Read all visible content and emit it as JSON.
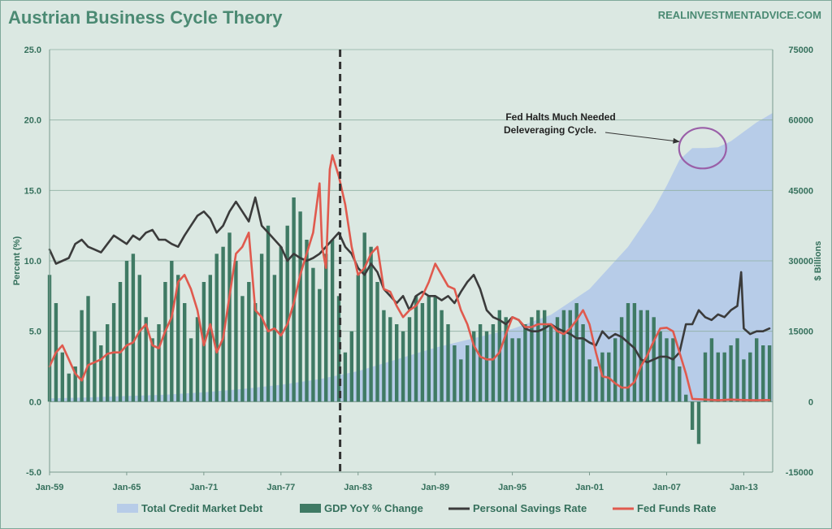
{
  "chart_data": {
    "type": "combo",
    "title": "Austrian Business Cycle Theory",
    "source": "REALINVESTMENTADVICE.COM",
    "ylabel_left": "Percent (%)",
    "ylabel_right": "$ Billions",
    "ylim_left": [
      -5,
      25
    ],
    "ylim_right": [
      -15000,
      75000
    ],
    "yticks_left": [
      "25.0",
      "20.0",
      "15.0",
      "10.0",
      "5.0",
      "0.0",
      "-5.0"
    ],
    "yticks_right": [
      "75000",
      "60000",
      "45000",
      "30000",
      "15000",
      "0",
      "-15000"
    ],
    "xlim": [
      1959.0,
      2015.25
    ],
    "x_ticks": [
      {
        "x": 1959,
        "label": "Jan-59"
      },
      {
        "x": 1965,
        "label": "Jan-65"
      },
      {
        "x": 1971,
        "label": "Jan-71"
      },
      {
        "x": 1977,
        "label": "Jan-77"
      },
      {
        "x": 1983,
        "label": "Jan-83"
      },
      {
        "x": 1989,
        "label": "Jan-89"
      },
      {
        "x": 1995,
        "label": "Jan-95"
      },
      {
        "x": 2001,
        "label": "Jan-01"
      },
      {
        "x": 2007,
        "label": "Jan-07"
      },
      {
        "x": 2013,
        "label": "Jan-13"
      }
    ],
    "grid": true,
    "legend_position": "bottom",
    "vertical_marker_x": 1981.6,
    "annotation": {
      "lines": [
        "Fed Halts Much Needed",
        "Deleveraging Cycle."
      ],
      "target_x": 2009.8,
      "target_y_right": 54000
    },
    "series": [
      {
        "name": "Total Credit Market Debt",
        "kind": "area",
        "axis": "right",
        "color": "#b7cce8",
        "x": [
          1959,
          1962,
          1965,
          1968,
          1971,
          1974,
          1977,
          1980,
          1983,
          1986,
          1989,
          1992,
          1995,
          1998,
          2001,
          2004,
          2006,
          2007,
          2008,
          2009,
          2010,
          2011,
          2012,
          2013,
          2014,
          2015.25
        ],
        "y": [
          700,
          900,
          1200,
          1500,
          2000,
          2700,
          3600,
          4800,
          6500,
          9000,
          11500,
          13500,
          15500,
          18500,
          24000,
          33000,
          41000,
          46000,
          51500,
          54000,
          54000,
          54200,
          55500,
          57500,
          59500,
          61500
        ]
      },
      {
        "name": "GDP YoY % Change",
        "kind": "bar",
        "axis": "left",
        "color": "#3f7a64",
        "x": [
          1959.0,
          1959.5,
          1960.0,
          1960.5,
          1961.0,
          1961.5,
          1962.0,
          1962.5,
          1963.0,
          1963.5,
          1964.0,
          1964.5,
          1965.0,
          1965.5,
          1966.0,
          1966.5,
          1967.0,
          1967.5,
          1968.0,
          1968.5,
          1969.0,
          1969.5,
          1970.0,
          1970.5,
          1971.0,
          1971.5,
          1972.0,
          1972.5,
          1973.0,
          1973.5,
          1974.0,
          1974.5,
          1975.0,
          1975.5,
          1976.0,
          1976.5,
          1977.0,
          1977.5,
          1978.0,
          1978.5,
          1979.0,
          1979.5,
          1980.0,
          1980.5,
          1981.0,
          1981.5,
          1982.0,
          1982.5,
          1983.0,
          1983.5,
          1984.0,
          1984.5,
          1985.0,
          1985.5,
          1986.0,
          1986.5,
          1987.0,
          1987.5,
          1988.0,
          1988.5,
          1989.0,
          1989.5,
          1990.0,
          1990.5,
          1991.0,
          1991.5,
          1992.0,
          1992.5,
          1993.0,
          1993.5,
          1994.0,
          1994.5,
          1995.0,
          1995.5,
          1996.0,
          1996.5,
          1997.0,
          1997.5,
          1998.0,
          1998.5,
          1999.0,
          1999.5,
          2000.0,
          2000.5,
          2001.0,
          2001.5,
          2002.0,
          2002.5,
          2003.0,
          2003.5,
          2004.0,
          2004.5,
          2005.0,
          2005.5,
          2006.0,
          2006.5,
          2007.0,
          2007.5,
          2008.0,
          2008.5,
          2009.0,
          2009.5,
          2010.0,
          2010.5,
          2011.0,
          2011.5,
          2012.0,
          2012.5,
          2013.0,
          2013.5,
          2014.0,
          2014.5,
          2015.0
        ],
        "y": [
          9.0,
          7.0,
          3.5,
          2.0,
          2.5,
          6.5,
          7.5,
          5.0,
          4.0,
          5.5,
          7.0,
          8.5,
          10.0,
          10.5,
          9.0,
          6.0,
          4.5,
          5.5,
          8.5,
          10.0,
          9.0,
          7.0,
          4.5,
          6.0,
          8.5,
          9.0,
          10.5,
          11.0,
          12.0,
          10.0,
          7.5,
          8.5,
          7.0,
          10.5,
          12.5,
          9.0,
          11.0,
          12.5,
          14.5,
          13.5,
          11.5,
          9.5,
          8.0,
          10.5,
          11.5,
          7.5,
          3.5,
          5.0,
          9.0,
          12.0,
          11.0,
          8.5,
          6.5,
          6.0,
          5.5,
          5.0,
          6.0,
          7.5,
          7.0,
          7.5,
          7.5,
          6.5,
          5.5,
          4.0,
          3.0,
          4.0,
          5.0,
          5.5,
          5.0,
          5.5,
          6.5,
          6.0,
          4.5,
          4.5,
          5.5,
          6.0,
          6.5,
          6.5,
          5.5,
          6.0,
          6.5,
          6.5,
          7.0,
          5.5,
          3.0,
          2.5,
          3.5,
          3.5,
          4.5,
          6.0,
          7.0,
          7.0,
          6.5,
          6.5,
          6.0,
          5.0,
          4.5,
          4.5,
          2.5,
          0.5,
          -2.0,
          -3.0,
          3.5,
          4.5,
          3.5,
          3.5,
          4.0,
          4.5,
          3.0,
          3.5,
          4.5,
          4.0,
          4.0
        ]
      },
      {
        "name": "Personal Savings Rate",
        "kind": "line",
        "axis": "left",
        "color": "#3b3b3b",
        "x": [
          1959.0,
          1959.5,
          1960.0,
          1960.5,
          1961.0,
          1961.5,
          1962.0,
          1962.5,
          1963.0,
          1963.5,
          1964.0,
          1964.5,
          1965.0,
          1965.5,
          1966.0,
          1966.5,
          1967.0,
          1967.5,
          1968.0,
          1968.5,
          1969.0,
          1969.5,
          1970.0,
          1970.5,
          1971.0,
          1971.5,
          1972.0,
          1972.5,
          1973.0,
          1973.5,
          1974.0,
          1974.5,
          1975.0,
          1975.5,
          1976.0,
          1976.5,
          1977.0,
          1977.5,
          1978.0,
          1978.5,
          1979.0,
          1979.5,
          1980.0,
          1980.5,
          1981.0,
          1981.5,
          1982.0,
          1982.5,
          1983.0,
          1983.5,
          1984.0,
          1984.5,
          1985.0,
          1985.5,
          1986.0,
          1986.5,
          1987.0,
          1987.5,
          1988.0,
          1988.5,
          1989.0,
          1989.5,
          1990.0,
          1990.5,
          1991.0,
          1991.5,
          1992.0,
          1992.5,
          1993.0,
          1993.5,
          1994.0,
          1994.5,
          1995.0,
          1995.5,
          1996.0,
          1996.5,
          1997.0,
          1997.5,
          1998.0,
          1998.5,
          1999.0,
          1999.5,
          2000.0,
          2000.5,
          2001.0,
          2001.5,
          2002.0,
          2002.5,
          2003.0,
          2003.5,
          2004.0,
          2004.5,
          2005.0,
          2005.5,
          2006.0,
          2006.5,
          2007.0,
          2007.5,
          2008.0,
          2008.5,
          2009.0,
          2009.5,
          2010.0,
          2010.5,
          2011.0,
          2011.5,
          2012.0,
          2012.5,
          2012.8,
          2013.0,
          2013.5,
          2014.0,
          2014.5,
          2015.0
        ],
        "y": [
          10.8,
          9.8,
          10.0,
          10.2,
          11.2,
          11.5,
          11.0,
          10.8,
          10.6,
          11.2,
          11.8,
          11.5,
          11.2,
          11.8,
          11.5,
          12.0,
          12.2,
          11.5,
          11.5,
          11.2,
          11.0,
          11.8,
          12.5,
          13.2,
          13.5,
          13.0,
          12.0,
          12.5,
          13.5,
          14.2,
          13.5,
          12.8,
          14.5,
          12.5,
          12.0,
          11.5,
          11.0,
          10.0,
          10.5,
          10.2,
          10.0,
          10.2,
          10.5,
          11.0,
          11.5,
          12.0,
          11.0,
          10.5,
          9.5,
          9.0,
          9.8,
          9.2,
          8.0,
          7.5,
          7.0,
          7.5,
          6.5,
          7.5,
          7.8,
          7.5,
          7.5,
          7.2,
          7.5,
          7.0,
          7.8,
          8.5,
          9.0,
          8.0,
          6.5,
          6.0,
          5.8,
          5.5,
          6.0,
          5.8,
          5.2,
          5.0,
          5.0,
          5.2,
          5.5,
          5.2,
          5.0,
          4.8,
          4.5,
          4.5,
          4.2,
          4.0,
          5.0,
          4.5,
          4.8,
          4.6,
          4.2,
          3.8,
          3.0,
          2.8,
          3.0,
          3.2,
          3.2,
          3.0,
          3.5,
          5.5,
          5.5,
          6.5,
          6.0,
          5.8,
          6.2,
          6.0,
          6.5,
          6.8,
          9.2,
          5.2,
          4.8,
          5.0,
          5.0,
          5.2
        ]
      },
      {
        "name": "Fed Funds Rate",
        "kind": "line",
        "axis": "left",
        "color": "#e05a4e",
        "x": [
          1959.0,
          1959.5,
          1960.0,
          1960.5,
          1961.0,
          1961.5,
          1962.0,
          1962.5,
          1963.0,
          1963.5,
          1964.0,
          1964.5,
          1965.0,
          1965.5,
          1966.0,
          1966.5,
          1967.0,
          1967.5,
          1968.0,
          1968.5,
          1969.0,
          1969.5,
          1970.0,
          1970.5,
          1971.0,
          1971.5,
          1972.0,
          1972.5,
          1973.0,
          1973.5,
          1974.0,
          1974.5,
          1975.0,
          1975.5,
          1976.0,
          1976.5,
          1977.0,
          1977.5,
          1978.0,
          1978.5,
          1979.0,
          1979.5,
          1980.0,
          1980.2,
          1980.5,
          1980.8,
          1981.0,
          1981.5,
          1982.0,
          1982.5,
          1983.0,
          1983.5,
          1984.0,
          1984.5,
          1985.0,
          1985.5,
          1986.0,
          1986.5,
          1987.0,
          1987.5,
          1988.0,
          1988.5,
          1989.0,
          1989.5,
          1990.0,
          1990.5,
          1991.0,
          1991.5,
          1992.0,
          1992.5,
          1993.0,
          1993.5,
          1994.0,
          1994.5,
          1995.0,
          1995.5,
          1996.0,
          1996.5,
          1997.0,
          1997.5,
          1998.0,
          1998.5,
          1999.0,
          1999.5,
          2000.0,
          2000.5,
          2001.0,
          2001.5,
          2002.0,
          2002.5,
          2003.0,
          2003.5,
          2004.0,
          2004.5,
          2005.0,
          2005.5,
          2006.0,
          2006.5,
          2007.0,
          2007.5,
          2008.0,
          2008.5,
          2009.0,
          2010.0,
          2011.0,
          2012.0,
          2013.0,
          2014.0,
          2015.0
        ],
        "y": [
          2.5,
          3.5,
          4.0,
          3.0,
          2.0,
          1.5,
          2.6,
          2.8,
          3.0,
          3.4,
          3.5,
          3.5,
          4.0,
          4.2,
          5.0,
          5.5,
          4.0,
          3.8,
          5.0,
          6.0,
          8.5,
          9.0,
          8.0,
          6.5,
          4.0,
          5.5,
          3.5,
          4.5,
          7.5,
          10.5,
          11.0,
          12.0,
          6.5,
          6.0,
          5.0,
          5.2,
          4.7,
          5.5,
          7.0,
          9.0,
          10.5,
          12.0,
          15.5,
          11.0,
          9.5,
          16.5,
          17.5,
          16.0,
          14.0,
          11.0,
          9.0,
          9.5,
          10.5,
          11.0,
          8.0,
          7.8,
          6.8,
          6.0,
          6.5,
          6.8,
          7.5,
          8.5,
          9.8,
          9.0,
          8.2,
          8.0,
          6.5,
          5.5,
          4.0,
          3.2,
          3.0,
          3.0,
          3.5,
          4.8,
          6.0,
          5.8,
          5.3,
          5.3,
          5.5,
          5.5,
          5.5,
          5.0,
          4.8,
          5.2,
          5.8,
          6.5,
          5.5,
          3.5,
          1.8,
          1.7,
          1.3,
          1.0,
          1.0,
          1.4,
          2.5,
          3.3,
          4.3,
          5.2,
          5.25,
          5.0,
          3.5,
          2.0,
          0.2,
          0.15,
          0.1,
          0.15,
          0.12,
          0.1,
          0.12
        ]
      }
    ]
  }
}
